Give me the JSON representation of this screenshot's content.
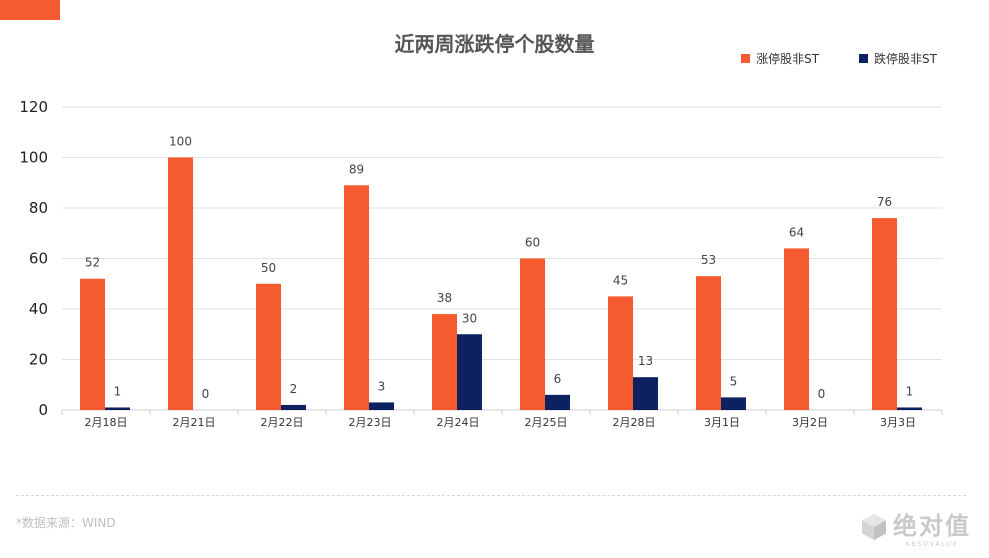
{
  "theme": {
    "series1_color": "#f55b2e",
    "series2_color": "#0d2160"
  },
  "chart_data": {
    "type": "bar",
    "title": "近两周涨跌停个股数量",
    "xlabel": "",
    "ylabel": "",
    "ylim": [
      0,
      120
    ],
    "yticks": [
      0,
      20,
      40,
      60,
      80,
      100,
      120
    ],
    "grid": true,
    "legend_position": "top-right",
    "categories": [
      "2月18日",
      "2月21日",
      "2月22日",
      "2月23日",
      "2月24日",
      "2月25日",
      "2月28日",
      "3月1日",
      "3月2日",
      "3月3日"
    ],
    "series": [
      {
        "name": "涨停股非ST",
        "values": [
          52,
          100,
          50,
          89,
          38,
          60,
          45,
          53,
          64,
          76
        ]
      },
      {
        "name": "跌停股非ST",
        "values": [
          1,
          0,
          2,
          3,
          30,
          6,
          13,
          5,
          0,
          1
        ]
      }
    ]
  },
  "footer": {
    "source_note": "*数据来源：WIND",
    "watermark": "绝对值",
    "watermark_sub": "ABSOVALUE"
  }
}
